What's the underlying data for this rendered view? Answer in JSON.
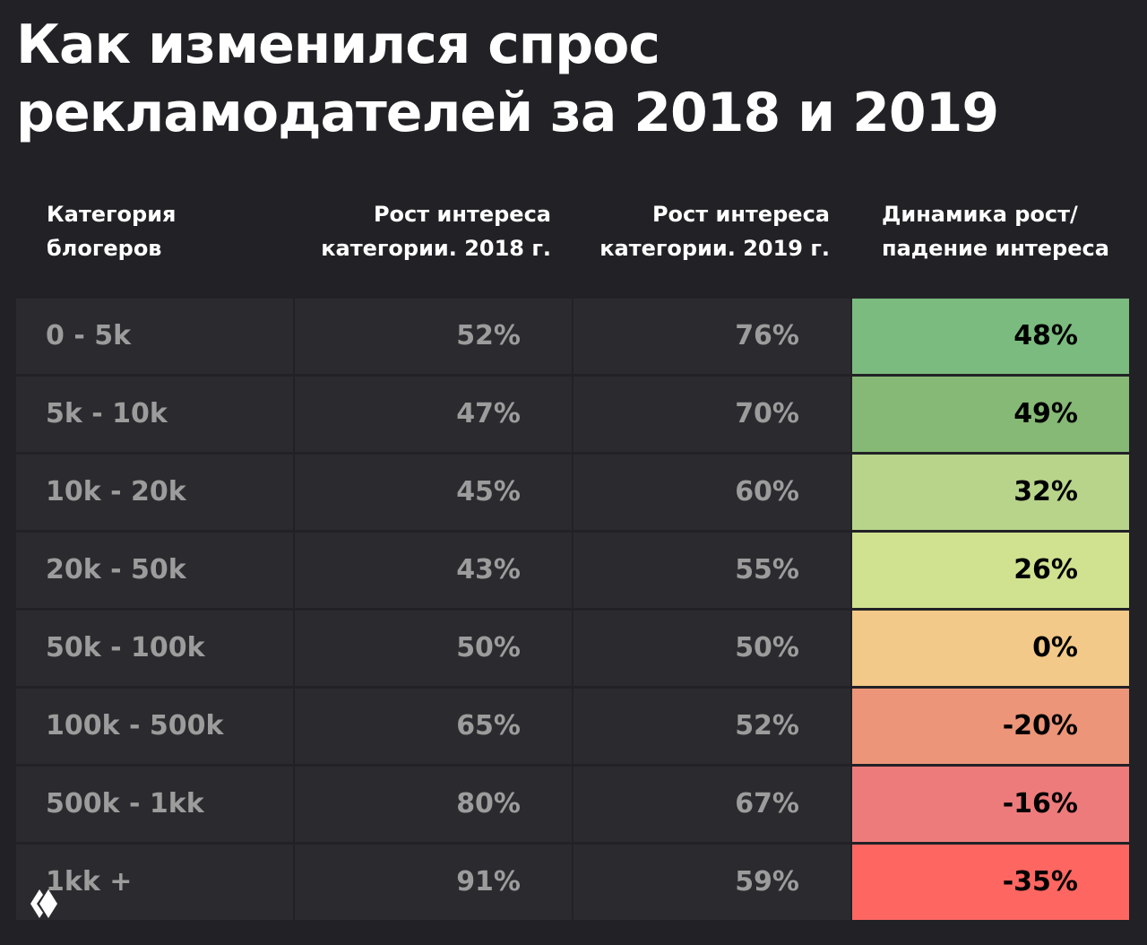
{
  "title": [
    "Как изменился спрос",
    "рекламодателей за 2018 и 2019"
  ],
  "table": {
    "headers": [
      "Категория\nблогеров",
      "Рост интереса\nкатегории. 2018 г.",
      "Рост интереса\nкатегории. 2019 г.",
      "Динамика рост/\nпадение интереса"
    ],
    "rows": [
      [
        "0 - 5k",
        "52%",
        "76%",
        "48%"
      ],
      [
        "5k - 10k",
        "47%",
        "70%",
        "49%"
      ],
      [
        "10k - 20k",
        "45%",
        "60%",
        "32%"
      ],
      [
        "20k - 50k",
        "43%",
        "55%",
        "26%"
      ],
      [
        "50k - 100k",
        "50%",
        "50%",
        "0%"
      ],
      [
        "100k - 500k",
        "65%",
        "52%",
        "-20%"
      ],
      [
        "500k - 1kk",
        "80%",
        "67%",
        "-16%"
      ],
      [
        "1kk +",
        "91%",
        "59%",
        "-35%"
      ]
    ],
    "dynamics_colors": [
      "#7bbb7f",
      "#86b975",
      "#b8d48b",
      "#d0e190",
      "#f2c988",
      "#ec9578",
      "#ee7b7b",
      "#fd6661"
    ]
  }
}
